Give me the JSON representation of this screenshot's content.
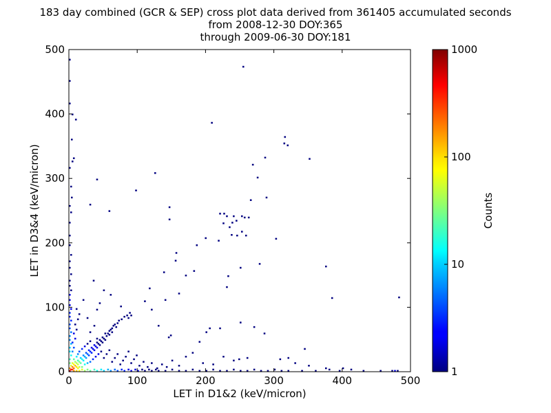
{
  "chart_data": {
    "type": "heatmap",
    "title_lines": [
      "183 day combined (GCR & SEP) cross plot data derived from 361405 accumulated seconds",
      "from 2008-12-30 DOY:365",
      "through 2009-06-30 DOY:181"
    ],
    "xlabel": "LET in D1&2 (keV/micron)",
    "ylabel": "LET in D3&4 (keV/micron)",
    "xlim": [
      0,
      500
    ],
    "ylim": [
      0,
      500
    ],
    "xticks": [
      "0",
      "100",
      "200",
      "300",
      "400",
      "500"
    ],
    "yticks": [
      "0",
      "100",
      "200",
      "300",
      "400",
      "500"
    ],
    "bin_size": 2,
    "colorbar": {
      "label": "Counts",
      "scale": "log",
      "range": [
        1,
        1000
      ],
      "ticks": [
        "1",
        "10",
        "100",
        "1000"
      ],
      "colormap": "jet"
    },
    "points": [
      [
        254,
        472,
        1
      ],
      [
        0,
        483,
        1
      ],
      [
        0,
        450,
        1
      ],
      [
        0,
        415,
        1
      ],
      [
        4,
        398,
        1
      ],
      [
        9,
        390,
        1
      ],
      [
        3,
        359,
        1
      ],
      [
        6,
        330,
        1
      ],
      [
        4,
        325,
        1
      ],
      [
        0,
        315,
        1
      ],
      [
        2,
        286,
        1
      ],
      [
        3,
        269,
        1
      ],
      [
        0,
        256,
        1
      ],
      [
        2,
        246,
        1
      ],
      [
        40,
        297,
        1
      ],
      [
        30,
        258,
        1
      ],
      [
        125,
        307,
        1
      ],
      [
        97,
        280,
        1
      ],
      [
        58,
        248,
        1
      ],
      [
        146,
        254,
        1
      ],
      [
        146,
        235,
        1
      ],
      [
        208,
        385,
        1
      ],
      [
        315,
        363,
        1
      ],
      [
        314,
        353,
        1
      ],
      [
        319,
        350,
        1
      ],
      [
        351,
        329,
        1
      ],
      [
        268,
        320,
        1
      ],
      [
        286,
        331,
        1
      ],
      [
        275,
        300,
        1
      ],
      [
        288,
        269,
        1
      ],
      [
        265,
        265,
        1
      ],
      [
        220,
        244,
        1
      ],
      [
        226,
        244,
        1
      ],
      [
        230,
        240,
        1
      ],
      [
        240,
        240,
        1
      ],
      [
        244,
        233,
        1
      ],
      [
        252,
        240,
        1
      ],
      [
        256,
        238,
        1
      ],
      [
        262,
        238,
        1
      ],
      [
        238,
        230,
        1
      ],
      [
        225,
        229,
        1
      ],
      [
        234,
        223,
        1
      ],
      [
        237,
        211,
        1
      ],
      [
        245,
        210,
        1
      ],
      [
        252,
        216,
        1
      ],
      [
        258,
        210,
        1
      ],
      [
        302,
        205,
        1
      ],
      [
        218,
        202,
        1
      ],
      [
        199,
        206,
        1
      ],
      [
        186,
        195,
        1
      ],
      [
        156,
        183,
        1
      ],
      [
        155,
        171,
        1
      ],
      [
        138,
        153,
        1
      ],
      [
        117,
        128,
        1
      ],
      [
        375,
        162,
        1
      ],
      [
        278,
        166,
        1
      ],
      [
        250,
        160,
        1
      ],
      [
        230,
        130,
        1
      ],
      [
        232,
        147,
        1
      ],
      [
        344,
        34,
        1
      ],
      [
        384,
        113,
        1
      ],
      [
        482,
        114,
        1
      ],
      [
        170,
        148,
        1
      ],
      [
        182,
        155,
        1
      ],
      [
        160,
        120,
        1
      ],
      [
        140,
        110,
        1
      ],
      [
        110,
        108,
        1
      ],
      [
        120,
        95,
        1
      ],
      [
        130,
        70,
        1
      ],
      [
        145,
        52,
        1
      ],
      [
        148,
        55,
        1
      ],
      [
        190,
        45,
        1
      ],
      [
        200,
        60,
        1
      ],
      [
        205,
        66,
        1
      ],
      [
        220,
        66,
        1
      ],
      [
        250,
        75,
        1
      ],
      [
        270,
        68,
        1
      ],
      [
        285,
        58,
        1
      ],
      [
        308,
        18,
        1
      ],
      [
        320,
        20,
        1
      ],
      [
        330,
        12,
        1
      ],
      [
        350,
        8,
        1
      ],
      [
        375,
        4,
        1
      ],
      [
        400,
        4,
        1
      ],
      [
        412,
        2,
        1
      ],
      [
        430,
        0,
        1
      ],
      [
        472,
        0,
        1
      ],
      [
        476,
        0,
        2
      ],
      [
        480,
        0,
        1
      ],
      [
        455,
        0,
        1
      ],
      [
        260,
        20,
        1
      ],
      [
        248,
        18,
        1
      ],
      [
        240,
        16,
        1
      ],
      [
        225,
        22,
        1
      ],
      [
        210,
        10,
        1
      ],
      [
        195,
        12,
        1
      ],
      [
        180,
        28,
        1
      ],
      [
        170,
        22,
        1
      ],
      [
        160,
        8,
        1
      ],
      [
        150,
        16,
        1
      ],
      [
        0,
        230,
        1
      ],
      [
        0,
        210,
        1
      ],
      [
        0,
        195,
        1
      ],
      [
        2,
        180,
        1
      ],
      [
        0,
        170,
        1
      ],
      [
        0,
        160,
        1
      ],
      [
        2,
        150,
        1
      ],
      [
        0,
        140,
        1
      ],
      [
        0,
        132,
        1
      ],
      [
        2,
        125,
        1
      ],
      [
        0,
        118,
        2
      ],
      [
        0,
        110,
        2
      ],
      [
        0,
        102,
        2
      ],
      [
        2,
        96,
        2
      ],
      [
        0,
        90,
        3
      ],
      [
        0,
        84,
        3
      ],
      [
        2,
        78,
        3
      ],
      [
        0,
        72,
        4
      ],
      [
        0,
        66,
        4
      ],
      [
        2,
        60,
        5
      ],
      [
        0,
        54,
        6
      ],
      [
        0,
        48,
        6
      ],
      [
        2,
        42,
        8
      ],
      [
        0,
        36,
        10
      ],
      [
        0,
        30,
        12
      ],
      [
        2,
        24,
        15
      ],
      [
        0,
        18,
        20
      ],
      [
        0,
        12,
        30
      ],
      [
        2,
        8,
        60
      ],
      [
        0,
        4,
        150
      ],
      [
        0,
        0,
        600
      ],
      [
        2,
        2,
        400
      ],
      [
        4,
        2,
        300
      ],
      [
        6,
        4,
        200
      ],
      [
        4,
        6,
        180
      ],
      [
        8,
        8,
        120
      ],
      [
        10,
        6,
        90
      ],
      [
        6,
        10,
        80
      ],
      [
        12,
        10,
        50
      ],
      [
        10,
        12,
        45
      ],
      [
        14,
        14,
        30
      ],
      [
        16,
        12,
        25
      ],
      [
        12,
        16,
        22
      ],
      [
        18,
        18,
        15
      ],
      [
        20,
        16,
        12
      ],
      [
        16,
        20,
        10
      ],
      [
        22,
        22,
        8
      ],
      [
        24,
        20,
        7
      ],
      [
        20,
        24,
        6
      ],
      [
        26,
        26,
        5
      ],
      [
        28,
        24,
        4
      ],
      [
        24,
        28,
        4
      ],
      [
        30,
        30,
        3
      ],
      [
        32,
        28,
        3
      ],
      [
        28,
        32,
        3
      ],
      [
        34,
        34,
        2
      ],
      [
        36,
        32,
        2
      ],
      [
        32,
        36,
        2
      ],
      [
        38,
        38,
        2
      ],
      [
        40,
        36,
        2
      ],
      [
        36,
        40,
        2
      ],
      [
        42,
        42,
        1
      ],
      [
        44,
        40,
        1
      ],
      [
        40,
        44,
        1
      ],
      [
        46,
        46,
        1
      ],
      [
        48,
        44,
        1
      ],
      [
        50,
        50,
        1
      ],
      [
        52,
        48,
        1
      ],
      [
        54,
        54,
        1
      ],
      [
        56,
        58,
        1
      ],
      [
        58,
        62,
        1
      ],
      [
        60,
        64,
        1
      ],
      [
        62,
        66,
        1
      ],
      [
        64,
        70,
        1
      ],
      [
        66,
        72,
        1
      ],
      [
        70,
        74,
        1
      ],
      [
        72,
        78,
        1
      ],
      [
        76,
        80,
        1
      ],
      [
        80,
        84,
        1
      ],
      [
        84,
        86,
        1
      ],
      [
        88,
        90,
        1
      ],
      [
        90,
        86,
        1
      ],
      [
        86,
        82,
        1
      ],
      [
        68,
        68,
        1
      ],
      [
        62,
        60,
        1
      ],
      [
        58,
        56,
        1
      ],
      [
        52,
        58,
        1
      ],
      [
        48,
        52,
        1
      ],
      [
        44,
        48,
        1
      ],
      [
        40,
        50,
        1
      ],
      [
        6,
        0,
        150
      ],
      [
        10,
        0,
        100
      ],
      [
        14,
        0,
        80
      ],
      [
        18,
        2,
        60
      ],
      [
        22,
        0,
        40
      ],
      [
        26,
        2,
        30
      ],
      [
        30,
        0,
        25
      ],
      [
        36,
        2,
        20
      ],
      [
        40,
        0,
        15
      ],
      [
        46,
        2,
        12
      ],
      [
        50,
        0,
        10
      ],
      [
        56,
        2,
        8
      ],
      [
        60,
        0,
        6
      ],
      [
        66,
        2,
        5
      ],
      [
        70,
        0,
        4
      ],
      [
        76,
        2,
        3
      ],
      [
        80,
        0,
        3
      ],
      [
        86,
        2,
        2
      ],
      [
        90,
        0,
        2
      ],
      [
        96,
        2,
        2
      ],
      [
        100,
        0,
        2
      ],
      [
        106,
        2,
        1
      ],
      [
        110,
        0,
        1
      ],
      [
        116,
        2,
        1
      ],
      [
        120,
        0,
        1
      ],
      [
        126,
        2,
        1
      ],
      [
        130,
        0,
        1
      ],
      [
        140,
        0,
        1
      ],
      [
        150,
        2,
        1
      ],
      [
        160,
        0,
        1
      ],
      [
        170,
        0,
        1
      ],
      [
        180,
        2,
        1
      ],
      [
        190,
        0,
        1
      ],
      [
        200,
        0,
        1
      ],
      [
        210,
        2,
        1
      ],
      [
        220,
        0,
        1
      ],
      [
        230,
        0,
        1
      ],
      [
        240,
        2,
        1
      ],
      [
        250,
        0,
        1
      ],
      [
        260,
        0,
        1
      ],
      [
        270,
        2,
        1
      ],
      [
        280,
        0,
        1
      ],
      [
        290,
        0,
        1
      ],
      [
        300,
        2,
        1
      ],
      [
        310,
        0,
        1
      ],
      [
        320,
        0,
        1
      ],
      [
        340,
        0,
        1
      ],
      [
        360,
        0,
        1
      ],
      [
        380,
        2,
        1
      ],
      [
        395,
        0,
        1
      ],
      [
        8,
        14,
        40
      ],
      [
        14,
        6,
        50
      ],
      [
        4,
        12,
        60
      ],
      [
        12,
        4,
        70
      ],
      [
        6,
        18,
        25
      ],
      [
        18,
        6,
        30
      ],
      [
        10,
        22,
        12
      ],
      [
        22,
        10,
        15
      ],
      [
        26,
        12,
        8
      ],
      [
        12,
        26,
        6
      ],
      [
        30,
        14,
        5
      ],
      [
        14,
        30,
        4
      ],
      [
        34,
        18,
        3
      ],
      [
        18,
        34,
        3
      ],
      [
        38,
        22,
        2
      ],
      [
        22,
        38,
        2
      ],
      [
        42,
        26,
        2
      ],
      [
        26,
        42,
        1
      ],
      [
        46,
        30,
        1
      ],
      [
        30,
        46,
        1
      ],
      [
        50,
        20,
        1
      ],
      [
        54,
        26,
        1
      ],
      [
        58,
        32,
        1
      ],
      [
        62,
        14,
        1
      ],
      [
        66,
        20,
        1
      ],
      [
        70,
        26,
        1
      ],
      [
        74,
        10,
        1
      ],
      [
        78,
        16,
        1
      ],
      [
        82,
        22,
        1
      ],
      [
        86,
        30,
        1
      ],
      [
        90,
        12,
        1
      ],
      [
        94,
        18,
        1
      ],
      [
        98,
        24,
        1
      ],
      [
        102,
        8,
        1
      ],
      [
        108,
        14,
        1
      ],
      [
        114,
        6,
        1
      ],
      [
        120,
        12,
        1
      ],
      [
        128,
        4,
        1
      ],
      [
        135,
        10,
        1
      ],
      [
        142,
        6,
        1
      ],
      [
        4,
        30,
        6
      ],
      [
        6,
        36,
        4
      ],
      [
        4,
        44,
        3
      ],
      [
        8,
        50,
        2
      ],
      [
        6,
        58,
        2
      ],
      [
        10,
        64,
        1
      ],
      [
        8,
        72,
        1
      ],
      [
        12,
        80,
        1
      ],
      [
        14,
        88,
        1
      ],
      [
        10,
        96,
        1
      ],
      [
        30,
        60,
        1
      ],
      [
        36,
        70,
        1
      ],
      [
        26,
        82,
        1
      ],
      [
        40,
        95,
        1
      ],
      [
        44,
        105,
        1
      ],
      [
        20,
        110,
        1
      ],
      [
        50,
        125,
        1
      ],
      [
        35,
        140,
        1
      ],
      [
        60,
        118,
        1
      ],
      [
        75,
        100,
        1
      ]
    ]
  }
}
